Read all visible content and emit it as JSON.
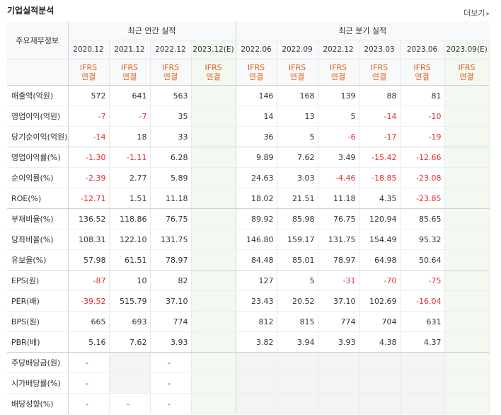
{
  "header": {
    "title": "기업실적분석",
    "more_label": "더보기"
  },
  "table": {
    "label_header": "주요재무정보",
    "annual_group": "최근 연간 실적",
    "quarter_group": "최근 분기 실적",
    "annual_periods": [
      "2020.12",
      "2021.12",
      "2022.12",
      "2023.12(E)"
    ],
    "quarter_periods": [
      "2022.06",
      "2022.09",
      "2022.12",
      "2023.03",
      "2023.06",
      "2023.09(E)"
    ],
    "basis_line1": "IFRS",
    "basis_line2": "연결",
    "rows": [
      {
        "label": "매출액(억원)",
        "values": [
          "572",
          "641",
          "563",
          "",
          "146",
          "168",
          "139",
          "88",
          "81",
          ""
        ]
      },
      {
        "label": "영업이익(억원)",
        "values": [
          "-7",
          "-7",
          "35",
          "",
          "14",
          "13",
          "5",
          "-14",
          "-10",
          ""
        ]
      },
      {
        "label": "당기순이익(억원)",
        "values": [
          "-14",
          "18",
          "33",
          "",
          "36",
          "5",
          "-6",
          "-17",
          "-19",
          ""
        ]
      },
      {
        "label": "영업이익률(%)",
        "values": [
          "-1.30",
          "-1.11",
          "6.28",
          "",
          "9.89",
          "7.62",
          "3.49",
          "-15.42",
          "-12.66",
          ""
        ]
      },
      {
        "label": "순이익률(%)",
        "values": [
          "-2.39",
          "2.77",
          "5.89",
          "",
          "24.63",
          "3.03",
          "-4.46",
          "-18.85",
          "-23.08",
          ""
        ]
      },
      {
        "label": "ROE(%)",
        "values": [
          "-12.71",
          "1.51",
          "11.18",
          "",
          "18.02",
          "21.51",
          "11.18",
          "4.35",
          "-23.85",
          ""
        ]
      },
      {
        "label": "부채비율(%)",
        "values": [
          "136.52",
          "118.86",
          "76.75",
          "",
          "89.92",
          "85.98",
          "76.75",
          "120.94",
          "85.65",
          ""
        ]
      },
      {
        "label": "당좌비율(%)",
        "values": [
          "108.31",
          "122.10",
          "131.75",
          "",
          "146.80",
          "159.17",
          "131.75",
          "154.49",
          "95.32",
          ""
        ]
      },
      {
        "label": "유보율(%)",
        "values": [
          "57.98",
          "61.51",
          "78.97",
          "",
          "84.48",
          "85.01",
          "78.97",
          "64.98",
          "50.64",
          ""
        ]
      },
      {
        "label": "EPS(원)",
        "values": [
          "-87",
          "10",
          "82",
          "",
          "127",
          "5",
          "-31",
          "-70",
          "-75",
          ""
        ]
      },
      {
        "label": "PER(배)",
        "values": [
          "-39.52",
          "515.79",
          "37.10",
          "",
          "23.43",
          "20.52",
          "37.10",
          "102.69",
          "-16.04",
          ""
        ]
      },
      {
        "label": "BPS(원)",
        "values": [
          "665",
          "693",
          "774",
          "",
          "812",
          "815",
          "774",
          "704",
          "631",
          ""
        ]
      },
      {
        "label": "PBR(배)",
        "values": [
          "5.16",
          "7.62",
          "3.93",
          "",
          "3.82",
          "3.94",
          "3.93",
          "4.38",
          "4.37",
          ""
        ]
      },
      {
        "label": "주당배당금(원)",
        "values": [
          "-",
          "",
          "-",
          "",
          "",
          "",
          "",
          "",
          "",
          ""
        ]
      },
      {
        "label": "시가배당률(%)",
        "values": [
          "-",
          "",
          "-",
          "",
          "",
          "",
          "",
          "",
          "",
          ""
        ]
      },
      {
        "label": "배당성향(%)",
        "values": [
          "-",
          "-",
          "-",
          "",
          "",
          "",
          "",
          "",
          "",
          ""
        ]
      }
    ]
  },
  "colors": {
    "negative": "#e22d2d",
    "basis": "#e35f1a",
    "estimate_bg": "#f3f9f1"
  }
}
